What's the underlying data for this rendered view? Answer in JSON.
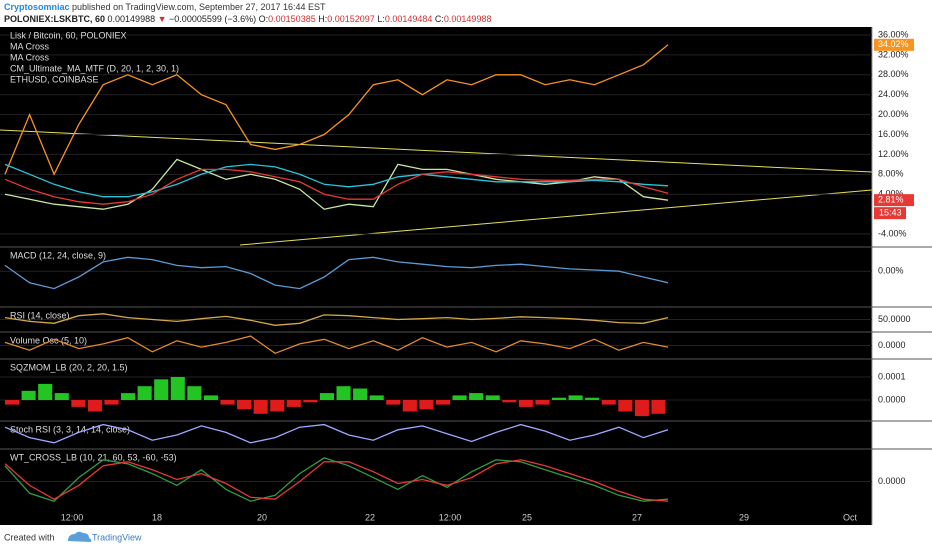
{
  "header": {
    "author": "Cryptosomniac",
    "published": "published on TradingView.com, September 27, 2017 16:44 EST",
    "symbol": "POLONIEX:LSKBTC, 60",
    "open_value": "0.00149988",
    "change": "−0.00005599 (−3.6%)",
    "o_label": "O:",
    "o": "0.00150385",
    "h_label": "H:",
    "h": "0.00152097",
    "l_label": "L:",
    "l": "0.00149484",
    "c_label": "C:",
    "c": "0.00149988"
  },
  "footer": {
    "created": "Created with",
    "brand": "TradingView"
  },
  "x_axis": [
    "12:00",
    "18",
    "20",
    "22",
    "12:00",
    "25",
    "27",
    "29",
    "Oct"
  ],
  "chart_data": [
    {
      "type": "line",
      "title": "Lisk / Bitcoin, 60, POLONIEX",
      "indicators": [
        "MA Cross",
        "MA Cross",
        "CM_Ultimate_MA_MTF (D, 20, 1, 2, 30, 1)",
        "ETHUSD, COINBASE"
      ],
      "countdown": "15:43",
      "ylim": [
        -6.4,
        37.4
      ],
      "yticks": [
        {
          "value": 36,
          "label": "36.00%"
        },
        {
          "value": 32,
          "label": "32.00%"
        },
        {
          "value": 28,
          "label": "28.00%"
        },
        {
          "value": 24,
          "label": "24.00%"
        },
        {
          "value": 20,
          "label": "20.00%"
        },
        {
          "value": 16,
          "label": "16.00%"
        },
        {
          "value": 12,
          "label": "12.00%"
        },
        {
          "value": 8,
          "label": "8.00%"
        },
        {
          "value": 4,
          "label": "4.00%"
        },
        {
          "value": -4,
          "label": "-4.00%"
        }
      ],
      "series": [
        {
          "color": "#f7931e",
          "values": [
            8,
            20,
            8,
            18,
            26,
            28,
            26,
            28,
            24,
            22,
            14,
            13,
            14,
            16,
            20,
            26,
            27,
            24,
            27,
            26,
            28,
            28,
            26,
            27,
            26,
            28,
            30,
            34.02
          ],
          "last_label": "34.02%"
        },
        {
          "color": "#c8e6a0",
          "values": [
            4,
            3,
            2,
            1.5,
            1,
            2,
            5,
            11,
            9,
            7,
            8,
            7,
            5,
            1,
            2,
            1.5,
            10,
            9,
            9,
            8,
            7,
            6.5,
            6,
            6.5,
            7.5,
            7,
            3.5,
            2.81
          ],
          "last_label": "2.81%",
          "badge_color": "#e53935"
        },
        {
          "color": "#26c6da",
          "values": [
            10,
            8,
            6,
            4.5,
            3.5,
            3.5,
            4.5,
            6,
            8,
            9.5,
            10,
            9.5,
            8,
            6,
            5.5,
            6,
            7.5,
            8,
            7.5,
            7,
            6.5,
            6.5,
            6.5,
            6.5,
            6.8,
            6.5,
            6,
            5.7
          ]
        },
        {
          "color": "#e53935",
          "values": [
            7,
            5,
            3.5,
            2.5,
            2,
            2.5,
            4,
            7,
            9,
            9,
            8.5,
            7.5,
            6.5,
            4,
            3,
            3,
            6,
            8,
            8.5,
            8,
            7.5,
            7,
            6.8,
            6.8,
            7,
            7,
            5.5,
            4.2
          ]
        }
      ]
    },
    {
      "type": "line",
      "title": "MACD (12, 24, close, 9)",
      "ylim": [
        -0.03,
        0.02
      ],
      "yticks": [
        {
          "value": 0,
          "label": "0.00%"
        }
      ],
      "series": [
        {
          "color": "#5b9bd5",
          "values": [
            0.005,
            -0.01,
            -0.015,
            -0.005,
            0.008,
            0.012,
            0.01,
            0.005,
            0.003,
            0.004,
            -0.002,
            -0.012,
            -0.015,
            -0.005,
            0.01,
            0.012,
            0.008,
            0.006,
            0.004,
            0.003,
            0.005,
            0.006,
            0.004,
            0.002,
            0.001,
            0,
            -0.005,
            -0.01
          ]
        }
      ]
    },
    {
      "type": "line",
      "title": "RSI (14, close)",
      "ylim": [
        20,
        80
      ],
      "yticks": [
        {
          "value": 50,
          "label": "50.0000"
        }
      ],
      "series": [
        {
          "color": "#d4a94a",
          "values": [
            55,
            45,
            40,
            60,
            65,
            55,
            50,
            45,
            52,
            58,
            48,
            35,
            40,
            62,
            60,
            55,
            50,
            52,
            55,
            50,
            53,
            57,
            55,
            52,
            48,
            42,
            40,
            55
          ]
        }
      ]
    },
    {
      "type": "line",
      "title": "Volume Osc (5, 10)",
      "ylim": [
        -40,
        40
      ],
      "yticks": [
        {
          "value": 0,
          "label": "0.0000"
        }
      ],
      "series": [
        {
          "color": "#e08a2c",
          "values": [
            10,
            -15,
            20,
            -10,
            5,
            25,
            -20,
            15,
            -5,
            10,
            30,
            -25,
            5,
            20,
            -10,
            15,
            -15,
            25,
            -5,
            10,
            -20,
            15,
            5,
            -10,
            20,
            -15,
            10,
            -5
          ]
        }
      ]
    },
    {
      "type": "bar",
      "title": "SQZMOM_LB (20, 2, 20, 1.5)",
      "ylim": [
        -8.7e-05,
        0.000174
      ],
      "yticks": [
        {
          "value": 0.0001,
          "label": "0.0001"
        },
        {
          "value": 0,
          "label": "0.0000"
        }
      ],
      "up_color": "#22c522",
      "down_color": "#e01b1b",
      "values": [
        -2e-05,
        4e-05,
        7e-05,
        3e-05,
        -3e-05,
        -5e-05,
        -2e-05,
        3e-05,
        6e-05,
        9e-05,
        0.0001,
        6e-05,
        2e-05,
        -2e-05,
        -4e-05,
        -6e-05,
        -5e-05,
        -3e-05,
        -1e-05,
        3e-05,
        6e-05,
        5e-05,
        2e-05,
        -2e-05,
        -5e-05,
        -4e-05,
        -2e-05,
        2e-05,
        3e-05,
        2e-05,
        -1e-05,
        -3e-05,
        -2e-05,
        1e-05,
        2e-05,
        1e-05,
        -2e-05,
        -5e-05,
        -7e-05,
        -6e-05
      ]
    },
    {
      "type": "line",
      "title": "Stoch RSI (3, 3, 14, 14, close)",
      "ylim": [
        0,
        100
      ],
      "yticks": [],
      "series": [
        {
          "color": "#9fa8ff",
          "values": [
            80,
            40,
            20,
            60,
            90,
            70,
            30,
            50,
            85,
            60,
            20,
            40,
            80,
            90,
            50,
            30,
            70,
            85,
            55,
            25,
            60,
            90,
            65,
            30,
            50,
            80,
            40,
            70
          ]
        }
      ]
    },
    {
      "type": "line",
      "title": "WT_CROSS_LB (10, 21, 60, 53, -60, -53)",
      "ylim": [
        -80,
        80
      ],
      "yticks": [
        {
          "value": 0,
          "label": "0.0000"
        }
      ],
      "series": [
        {
          "color": "#2e9e3e",
          "values": [
            40,
            -30,
            -50,
            10,
            55,
            45,
            20,
            -10,
            30,
            -20,
            -50,
            -35,
            20,
            60,
            40,
            10,
            -20,
            15,
            -15,
            25,
            55,
            50,
            30,
            10,
            -10,
            -35,
            -50,
            -45
          ]
        },
        {
          "color": "#e53935",
          "values": [
            45,
            -10,
            -45,
            -10,
            40,
            50,
            30,
            5,
            20,
            -5,
            -40,
            -45,
            0,
            50,
            50,
            25,
            -5,
            5,
            -10,
            10,
            45,
            55,
            40,
            20,
            0,
            -25,
            -45,
            -50
          ]
        }
      ]
    }
  ]
}
